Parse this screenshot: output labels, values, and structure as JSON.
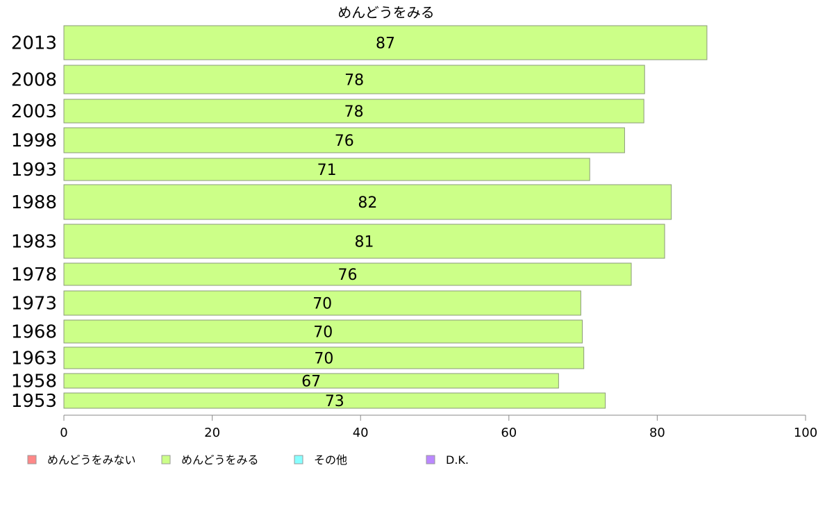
{
  "chart_data": {
    "type": "bar",
    "orientation": "horizontal",
    "title": "めんどうをみる",
    "xlabel": "",
    "ylabel": "",
    "xlim": [
      0,
      100
    ],
    "xticks": [
      0,
      20,
      40,
      60,
      80,
      100
    ],
    "grid": false,
    "legend_placement": "bottom-left",
    "categories": [
      "2013",
      "2008",
      "2003",
      "1998",
      "1993",
      "1988",
      "1983",
      "1978",
      "1973",
      "1968",
      "1963",
      "1958",
      "1953"
    ],
    "series": [
      {
        "name": "めんどうをみる",
        "color": "#ccff88",
        "values": [
          87,
          78,
          78,
          76,
          71,
          82,
          81,
          76,
          70,
          70,
          70,
          67,
          73
        ],
        "plotted_values": [
          86.7,
          78.3,
          78.2,
          75.6,
          70.9,
          81.9,
          81.0,
          76.5,
          69.7,
          69.9,
          70.1,
          66.7,
          73.0
        ]
      }
    ],
    "legend": [
      {
        "name": "めんどうをみない",
        "color": "#ff8888"
      },
      {
        "name": "めんどうをみる",
        "color": "#ccff88"
      },
      {
        "name": "その他",
        "color": "#88ffff"
      },
      {
        "name": "D.K.",
        "color": "#bb88ff"
      }
    ]
  }
}
